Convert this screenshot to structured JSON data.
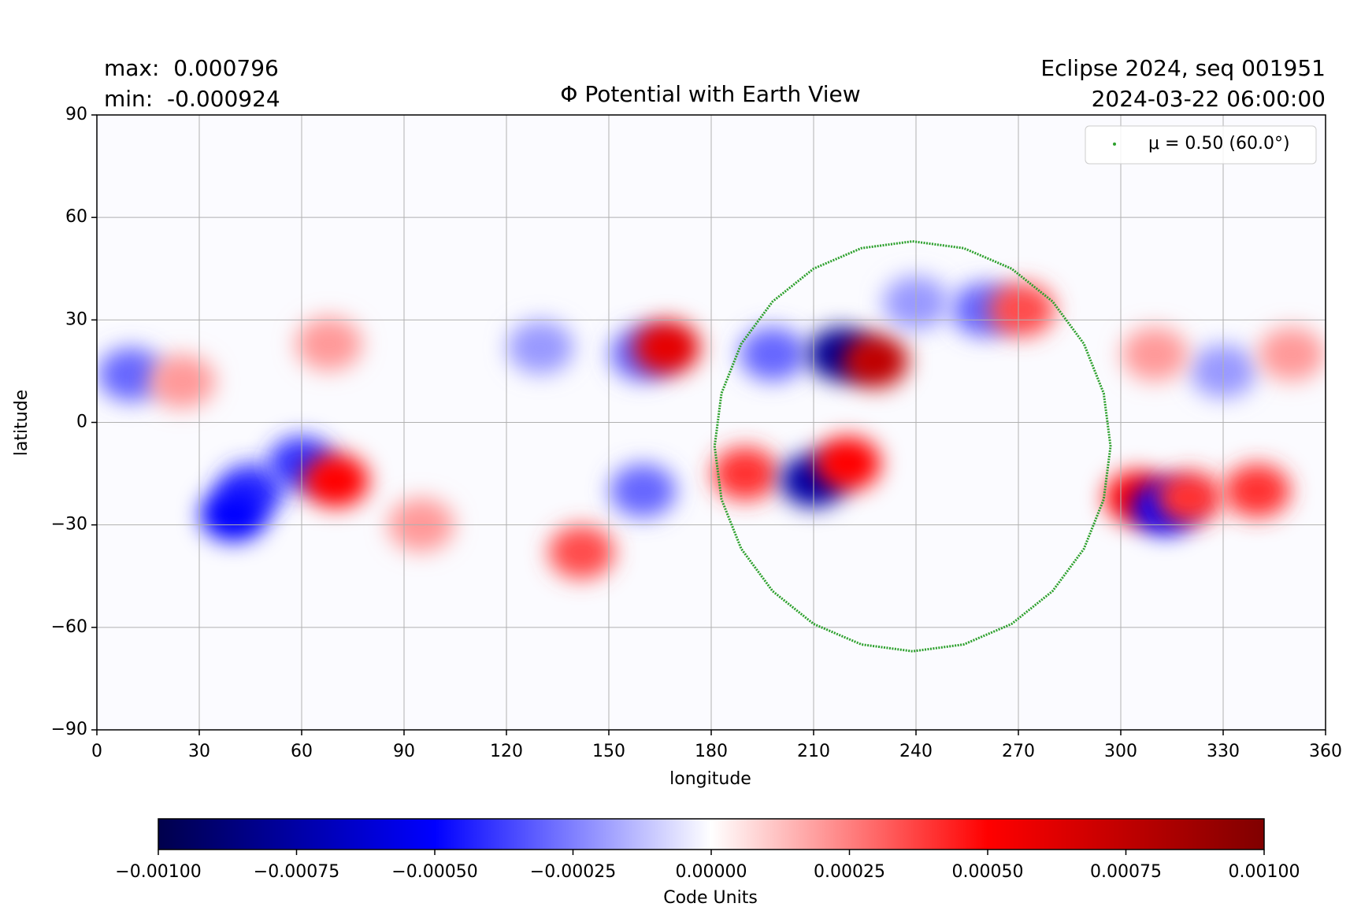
{
  "chart_data": {
    "type": "heatmap",
    "title": "Φ Potential with Earth View",
    "annotations": [
      "max:  0.000796",
      "min:  -0.000924",
      "Eclipse 2024, seq 001951",
      "2024-03-22 06:00:00"
    ],
    "xlabel": "longitude",
    "ylabel": "latitude",
    "xlim": [
      0,
      360
    ],
    "ylim": [
      -90,
      90
    ],
    "xticks": [
      0,
      30,
      60,
      90,
      120,
      150,
      180,
      210,
      240,
      270,
      300,
      330,
      360
    ],
    "yticks": [
      {
        "value": -90,
        "label": "−90"
      },
      {
        "value": -60,
        "label": "−60"
      },
      {
        "value": -30,
        "label": "−30"
      },
      0,
      30,
      60,
      90
    ],
    "grid": true,
    "legend": "upper right",
    "cells": [
      {
        "lon": 10,
        "lat": 14,
        "value": -0.0003
      },
      {
        "lon": 25,
        "lat": 12,
        "value": 0.0002
      },
      {
        "lon": 68,
        "lat": 23,
        "value": 0.0002
      },
      {
        "lon": 45,
        "lat": -20,
        "value": -0.0004
      },
      {
        "lon": 40,
        "lat": -27,
        "value": -0.0005
      },
      {
        "lon": 60,
        "lat": -12,
        "value": -0.0004
      },
      {
        "lon": 70,
        "lat": -17,
        "value": 0.0005
      },
      {
        "lon": 95,
        "lat": -30,
        "value": 0.0002
      },
      {
        "lon": 142,
        "lat": -38,
        "value": 0.00035
      },
      {
        "lon": 160,
        "lat": 20,
        "value": -0.0003
      },
      {
        "lon": 167,
        "lat": 22,
        "value": 0.0006
      },
      {
        "lon": 130,
        "lat": 22,
        "value": -0.0002
      },
      {
        "lon": 160,
        "lat": -20,
        "value": -0.0003
      },
      {
        "lon": 190,
        "lat": -15,
        "value": 0.0004
      },
      {
        "lon": 210,
        "lat": -17,
        "value": -0.00075
      },
      {
        "lon": 220,
        "lat": -12,
        "value": 0.0005
      },
      {
        "lon": 198,
        "lat": 20,
        "value": -0.0003
      },
      {
        "lon": 218,
        "lat": 20,
        "value": -0.0008
      },
      {
        "lon": 228,
        "lat": 18,
        "value": 0.00075
      },
      {
        "lon": 260,
        "lat": 33,
        "value": -0.0003
      },
      {
        "lon": 271,
        "lat": 33,
        "value": 0.00035
      },
      {
        "lon": 305,
        "lat": -22,
        "value": 0.0005
      },
      {
        "lon": 313,
        "lat": -25,
        "value": -0.0005
      },
      {
        "lon": 320,
        "lat": -22,
        "value": 0.0004
      },
      {
        "lon": 340,
        "lat": -20,
        "value": 0.0004
      },
      {
        "lon": 330,
        "lat": 15,
        "value": -0.0002
      },
      {
        "lon": 310,
        "lat": 20,
        "value": 0.0002
      },
      {
        "lon": 240,
        "lat": 35,
        "value": -0.0002
      },
      {
        "lon": 350,
        "lat": 20,
        "value": 0.0002
      }
    ],
    "series": [
      {
        "name": "μ = 0.50 (60.0°)",
        "color": "#2ca02c",
        "x": [
          239,
          254,
          268,
          280,
          289.2,
          295,
          297,
          295,
          289.2,
          280,
          268,
          254,
          239,
          224,
          210,
          198,
          188.8,
          183,
          181,
          183,
          188.8,
          198,
          210,
          224,
          239
        ],
        "y": [
          53,
          51,
          45,
          35.4,
          23,
          8.5,
          -7,
          -22.5,
          -37,
          -49.4,
          -59,
          -65,
          -67,
          -65,
          -59,
          -49.4,
          -37,
          -22.5,
          -7,
          8.5,
          23,
          35.4,
          45,
          51,
          53
        ]
      }
    ],
    "colorbar": {
      "label": "Code Units",
      "clim": [
        -0.001,
        0.001
      ],
      "colors": [
        "#00004c",
        "#0000ff",
        "#ffffff",
        "#ff0000",
        "#800000"
      ],
      "ticks": [
        {
          "value": -0.001,
          "label": "−0.00100"
        },
        {
          "value": -0.00075,
          "label": "−0.00075"
        },
        {
          "value": -0.0005,
          "label": "−0.00050"
        },
        {
          "value": -0.00025,
          "label": "−0.00025"
        },
        {
          "value": 0,
          "label": "0.00000"
        },
        {
          "value": 0.00025,
          "label": "0.00025"
        },
        {
          "value": 0.0005,
          "label": "0.00050"
        },
        {
          "value": 0.00075,
          "label": "0.00075"
        },
        {
          "value": 0.001,
          "label": "0.00100"
        }
      ]
    }
  }
}
